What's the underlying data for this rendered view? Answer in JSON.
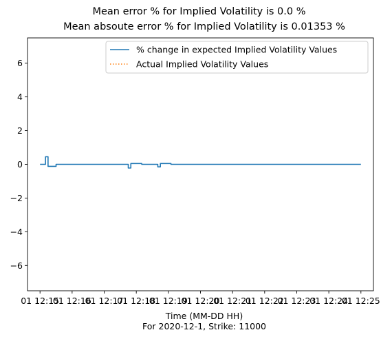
{
  "chart_data": {
    "type": "line",
    "title": [
      "Mean error % for Implied Volatility is 0.0 %",
      "Mean absoute error % for Implied Volatility is 0.01353 %"
    ],
    "xlabel": "Time (MM-DD HH)",
    "xlabel_sub": "For 2020-12-1, Strike: 11000",
    "ylabel": "",
    "ylim": [
      -7.5,
      7.5
    ],
    "yticks": [
      -6,
      -4,
      -2,
      0,
      2,
      4,
      6
    ],
    "ytick_labels": [
      "−6",
      "−4",
      "−2",
      "0",
      "2",
      "4",
      "6"
    ],
    "xlim_minutes": [
      14.61,
      25.39
    ],
    "xticks_minutes": [
      15,
      16,
      17,
      18,
      19,
      20,
      21,
      22,
      23,
      24,
      25
    ],
    "xtick_labels": [
      "01 12:15",
      "01 12:16",
      "01 12:17",
      "01 12:18",
      "01 12:19",
      "01 12:20",
      "01 12:21",
      "01 12:22",
      "01 12:23",
      "01 12:24",
      "01 12:25"
    ],
    "grid": false,
    "legend_position": "upper right",
    "series": [
      {
        "name": "% change in expected Implied Volatility Values",
        "color": "#1f77b4",
        "style": "solid",
        "x_minutes": [
          15.0,
          15.17,
          15.17,
          15.25,
          15.25,
          15.5,
          15.5,
          17.75,
          17.75,
          17.83,
          17.83,
          18.17,
          18.17,
          18.67,
          18.67,
          18.75,
          18.75,
          19.08,
          19.08,
          25.0
        ],
        "values": [
          0.0,
          0.0,
          0.45,
          0.45,
          -0.12,
          -0.12,
          0.0,
          0.0,
          -0.22,
          -0.22,
          0.05,
          0.05,
          0.0,
          0.0,
          -0.15,
          -0.15,
          0.05,
          0.05,
          0.0,
          0.0
        ]
      },
      {
        "name": "Actual Implied Volatility Values",
        "color": "#ff7f0e",
        "style": "dotted",
        "x_minutes": [],
        "values": []
      }
    ]
  }
}
